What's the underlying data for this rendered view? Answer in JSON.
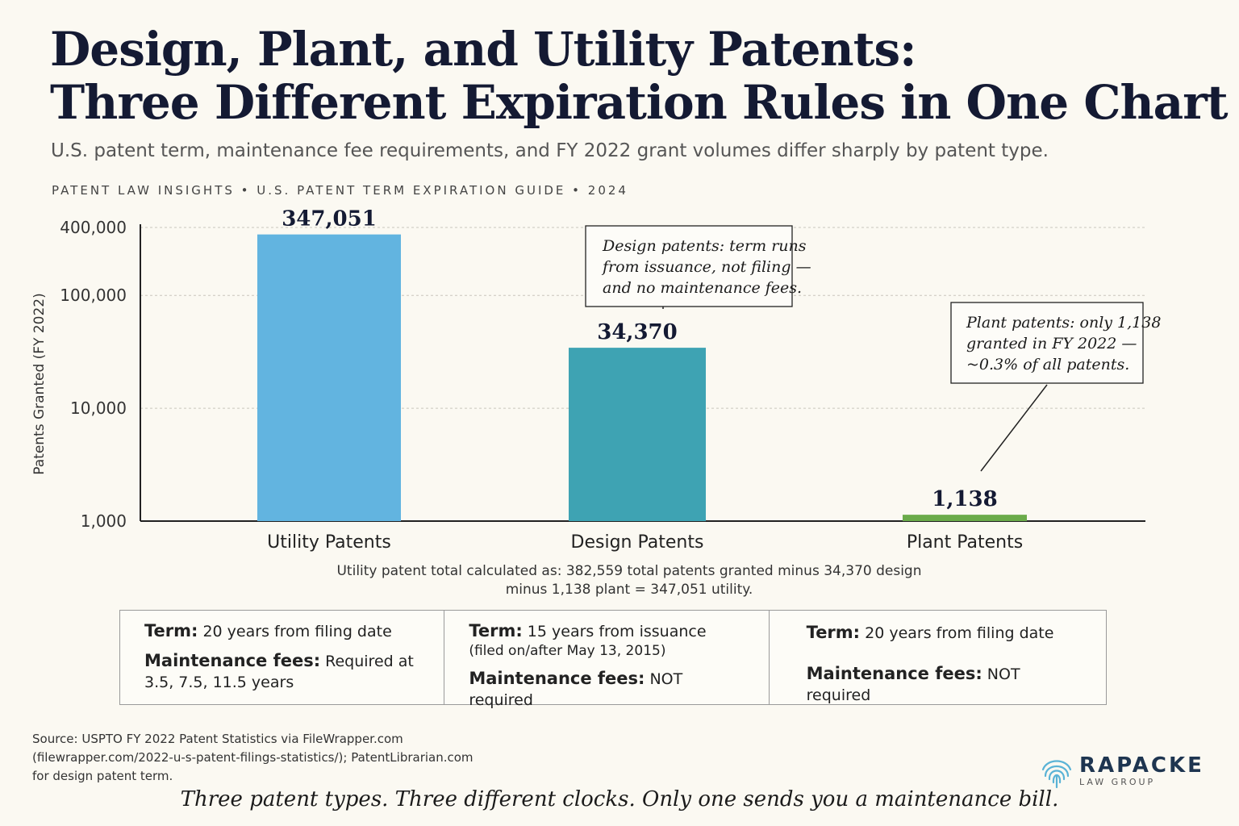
{
  "header": {
    "title_line1": "Design, Plant, and Utility Patents:",
    "title_line2": "Three Different Expiration Rules in One Chart",
    "subtitle": "U.S. patent term, maintenance fee requirements, and FY 2022 grant volumes differ sharply by patent type.",
    "kicker": "PATENT LAW INSIGHTS  •  U.S. PATENT TERM EXPIRATION GUIDE  •  2024"
  },
  "chart_data": {
    "type": "bar",
    "scale": "log",
    "ylabel": "Patents Granted (FY 2022)",
    "ylim": [
      1000,
      400000
    ],
    "yticks": [
      {
        "value": 1000,
        "label": "1,000"
      },
      {
        "value": 10000,
        "label": "10,000"
      },
      {
        "value": 100000,
        "label": "100,000"
      },
      {
        "value": 400000,
        "label": "400,000"
      }
    ],
    "grid": true,
    "categories": [
      "Utility Patents",
      "Design Patents",
      "Plant Patents"
    ],
    "values": [
      347051,
      34370,
      1138
    ],
    "value_labels": [
      "347,051",
      "34,370",
      "1,138"
    ],
    "colors": [
      "#62b4e0",
      "#3ea3b3",
      "#6aab4a"
    ],
    "annotations": [
      {
        "target": "Design Patents",
        "lines": [
          "Design patents: term runs",
          "from issuance, not filing —",
          "and no maintenance fees."
        ]
      },
      {
        "target": "Plant Patents",
        "lines": [
          "Plant patents: only 1,138",
          "granted in FY 2022 —",
          "~0.3% of all patents."
        ]
      }
    ]
  },
  "note": {
    "line1": "Utility patent total calculated as: 382,559 total patents granted minus 34,370 design",
    "line2": "minus 1,138 plant = 347,051 utility."
  },
  "terms": [
    {
      "term_label": "Term:",
      "term_value": "20 years from filing date",
      "term_sub": "",
      "fee_label": "Maintenance fees:",
      "fee_value": "Required at",
      "fee_sub": "3.5, 7.5, 11.5 years"
    },
    {
      "term_label": "Term:",
      "term_value": "15 years from issuance",
      "term_sub": "(filed on/after May 13, 2015)",
      "fee_label": "Maintenance fees:",
      "fee_value": "NOT required",
      "fee_sub": ""
    },
    {
      "term_label": "Term:",
      "term_value": "20 years from filing date",
      "term_sub": "",
      "fee_label": "Maintenance fees:",
      "fee_value": "NOT required",
      "fee_sub": ""
    }
  ],
  "source": {
    "line1": "Source: USPTO FY 2022 Patent Statistics via FileWrapper.com",
    "line2": "(filewrapper.com/2022-u-s-patent-filings-statistics/); PatentLibrarian.com",
    "line3": "for design patent term."
  },
  "logo": {
    "name": "RAPACKE",
    "sub": "LAW GROUP",
    "icon": "fingerprint-icon",
    "color": "#5ab3d6"
  },
  "tagline": "Three patent types. Three different clocks. Only one sends you a maintenance bill."
}
